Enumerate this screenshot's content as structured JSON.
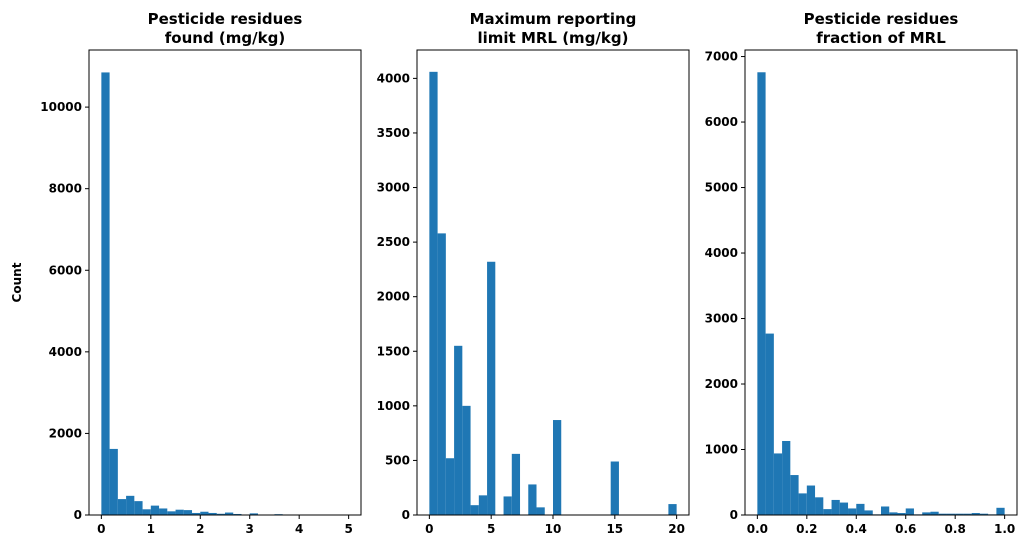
{
  "chart_data": [
    {
      "type": "bar",
      "title": [
        "Pesticide residues",
        "found (mg/kg)"
      ],
      "xlabel": "",
      "ylabel": "Count",
      "xlim": [
        -0.25,
        5.25
      ],
      "ylim": [
        0,
        11400
      ],
      "xticks": [
        0,
        1,
        2,
        3,
        4,
        5
      ],
      "xtick_labels": [
        "0",
        "1",
        "2",
        "3",
        "4",
        "5"
      ],
      "yticks": [
        0,
        2000,
        4000,
        6000,
        8000,
        10000
      ],
      "ytick_labels": [
        "0",
        "2000",
        "4000",
        "6000",
        "8000",
        "10000"
      ],
      "bin_edges": [
        0,
        0.1667,
        0.3333,
        0.5,
        0.6667,
        0.8333,
        1.0,
        1.1667,
        1.3333,
        1.5,
        1.6667,
        1.8333,
        2.0,
        2.1667,
        2.3333,
        2.5,
        2.6667,
        2.8333,
        3.0,
        3.1667,
        3.3333,
        3.5,
        3.6667,
        3.8333,
        4.0,
        4.1667,
        4.3333,
        4.5,
        4.6667,
        4.8333,
        5.0
      ],
      "values": [
        10850,
        1620,
        390,
        470,
        340,
        140,
        230,
        160,
        90,
        130,
        120,
        50,
        80,
        50,
        30,
        60,
        25,
        10,
        40,
        10,
        5,
        20,
        5,
        5,
        5,
        3,
        3,
        3,
        3,
        3
      ],
      "color": "#1f77b4",
      "grid": false
    },
    {
      "type": "bar",
      "title": [
        "Maximum reporting",
        "limit MRL (mg/kg)"
      ],
      "xlabel": "",
      "ylabel": "",
      "xlim": [
        -1,
        21
      ],
      "ylim": [
        0,
        4260
      ],
      "xticks": [
        0,
        5,
        10,
        15,
        20
      ],
      "xtick_labels": [
        "0",
        "5",
        "10",
        "15",
        "20"
      ],
      "yticks": [
        0,
        500,
        1000,
        1500,
        2000,
        2500,
        3000,
        3500,
        4000
      ],
      "ytick_labels": [
        "0",
        "500",
        "1000",
        "1500",
        "2000",
        "2500",
        "3000",
        "3500",
        "4000"
      ],
      "bin_edges": [
        0,
        0.6667,
        1.3333,
        2.0,
        2.6667,
        3.3333,
        4.0,
        4.6667,
        5.3333,
        6.0,
        6.6667,
        7.3333,
        8.0,
        8.6667,
        9.3333,
        10.0,
        10.6667,
        11.3333,
        12.0,
        12.6667,
        13.3333,
        14.0,
        14.6667,
        15.3333,
        16.0,
        16.6667,
        17.3333,
        18.0,
        18.6667,
        19.3333,
        20.0
      ],
      "values": [
        4060,
        2580,
        520,
        1550,
        1000,
        90,
        180,
        2320,
        0,
        170,
        560,
        0,
        280,
        70,
        0,
        870,
        0,
        0,
        0,
        0,
        0,
        0,
        490,
        0,
        0,
        0,
        0,
        0,
        0,
        100
      ],
      "color": "#1f77b4",
      "grid": false
    },
    {
      "type": "bar",
      "title": [
        "Pesticide residues",
        "fraction of MRL"
      ],
      "xlabel": "",
      "ylabel": "",
      "xlim": [
        -0.05,
        1.05
      ],
      "ylim": [
        0,
        7100
      ],
      "xticks": [
        0.0,
        0.2,
        0.4,
        0.6,
        0.8,
        1.0
      ],
      "xtick_labels": [
        "0.0",
        "0.2",
        "0.4",
        "0.6",
        "0.8",
        "1.0"
      ],
      "yticks": [
        0,
        1000,
        2000,
        3000,
        4000,
        5000,
        6000,
        7000
      ],
      "ytick_labels": [
        "0",
        "1000",
        "2000",
        "3000",
        "4000",
        "5000",
        "6000",
        "7000"
      ],
      "bin_edges": [
        0,
        0.0333,
        0.0667,
        0.1,
        0.1333,
        0.1667,
        0.2,
        0.2333,
        0.2667,
        0.3,
        0.3333,
        0.3667,
        0.4,
        0.4333,
        0.4667,
        0.5,
        0.5333,
        0.5667,
        0.6,
        0.6333,
        0.6667,
        0.7,
        0.7333,
        0.7667,
        0.8,
        0.8333,
        0.8667,
        0.9,
        0.9333,
        0.9667,
        1.0
      ],
      "values": [
        6760,
        2770,
        940,
        1130,
        610,
        330,
        450,
        270,
        90,
        230,
        190,
        100,
        170,
        70,
        10,
        130,
        40,
        30,
        100,
        10,
        40,
        50,
        20,
        20,
        20,
        20,
        30,
        20,
        10,
        110
      ],
      "color": "#1f77b4",
      "grid": false
    }
  ]
}
